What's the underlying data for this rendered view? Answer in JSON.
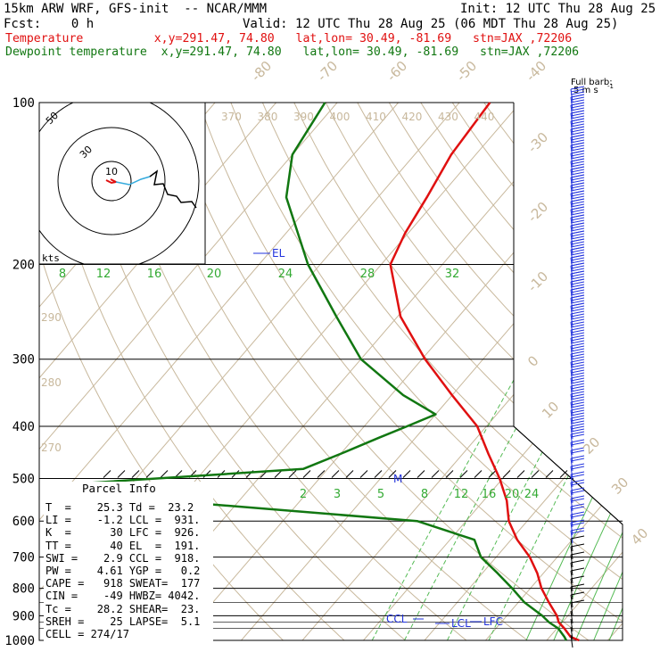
{
  "header": {
    "model": "15km ARW WRF, GFS-init  -- NCAR/MMM",
    "init": "Init: 12 UTC Thu 28 Aug 25",
    "fcst": "Fcst:    0 h",
    "valid": "Valid: 12 UTC Thu 28 Aug 25 (06 MDT Thu 28 Aug 25)",
    "temp_line": "Temperature          x,y=291.47, 74.80   lat,lon= 30.49, -81.69   stn=JAX ,72206",
    "dew_line": "Dewpoint temperature  x,y=291.47, 74.80   lat,lon= 30.49, -81.69   stn=JAX ,72206"
  },
  "colors": {
    "temperature": "#e01010",
    "dewpoint": "#117711",
    "grid": "#c8b89c",
    "mixing": "#55bb55",
    "barb": "#2233dd"
  },
  "chart_data": {
    "type": "line",
    "pressure_ticks": [
      "100",
      "200",
      "300",
      "400",
      "500",
      "600",
      "700",
      "800",
      "900",
      "1000"
    ],
    "temp_axis_labels": [
      "-80",
      "-70",
      "-60",
      "-50",
      "-40",
      "-30",
      "-20",
      "-10",
      "0",
      "10",
      "20",
      "30",
      "40"
    ],
    "theta_labels": [
      "370",
      "380",
      "390",
      "400",
      "410",
      "420",
      "430",
      "440"
    ],
    "theta_side_labels": [
      "290",
      "280",
      "270"
    ],
    "mixing_labels": [
      "8",
      "12",
      "16",
      "20",
      "24",
      "28",
      "32"
    ],
    "mixing_low_labels": [
      "2",
      "3",
      "5",
      "8",
      "12",
      "16",
      "20",
      "24"
    ],
    "barb_title": "Full barb:",
    "barb_unit": "5 m s",
    "barb_exp": "-1",
    "hodo_rings": [
      "50",
      "30",
      "10"
    ],
    "hodo_unit": "kts",
    "markers": {
      "el": "EL",
      "m": "M",
      "ccl": "CCL",
      "lcl": "LCL",
      "lfc": "LFC"
    },
    "series": [
      {
        "name": "Temperature",
        "pressure": [
          1000,
          985,
          950,
          925,
          900,
          850,
          800,
          750,
          700,
          650,
          600,
          550,
          500,
          450,
          400,
          350,
          300,
          250,
          200,
          175,
          150,
          125,
          100
        ],
        "temp": [
          25.3,
          23.4,
          21.2,
          19.4,
          18.2,
          15.0,
          11.8,
          9.0,
          5.5,
          1.0,
          -3.0,
          -6.2,
          -10.5,
          -15.8,
          -21.5,
          -30.0,
          -39.5,
          -49.5,
          -58.5,
          -60.5,
          -62.0,
          -64.0,
          -65.0
        ]
      },
      {
        "name": "Dewpoint temperature",
        "pressure": [
          1000,
          985,
          950,
          925,
          900,
          850,
          800,
          750,
          700,
          650,
          600,
          550,
          510,
          480,
          450,
          420,
          400,
          380,
          350,
          300,
          250,
          200,
          150,
          125,
          100
        ],
        "temp": [
          23.2,
          22.4,
          20.2,
          17.8,
          15.8,
          11.0,
          7.0,
          2.5,
          -2.5,
          -6.0,
          -18.0,
          -62.0,
          -80.0,
          -44.0,
          -40.0,
          -36.0,
          -33.0,
          -30.0,
          -38.0,
          -50.0,
          -60.0,
          -72.0,
          -85.0,
          -90.0,
          -92.0
        ]
      }
    ]
  },
  "parcel": {
    "title": "Parcel Info",
    "rows": [
      "T  =    25.3 Td =  23.2",
      "LI =    -1.2 LCL =  931.",
      "K  =      30 LFC =  926.",
      "TT =      40 EL  =  191.",
      "SWI =    2.9 CCL =  918.",
      "PW =    4.61 YGP =   0.2",
      "CAPE =   918 SWEAT=  177",
      "CIN =    -49 HWBZ= 4042.",
      "Tc =    28.2 SHEAR=  23.",
      "SREH =    25 LAPSE=  5.1",
      "CELL = 274/17"
    ]
  }
}
